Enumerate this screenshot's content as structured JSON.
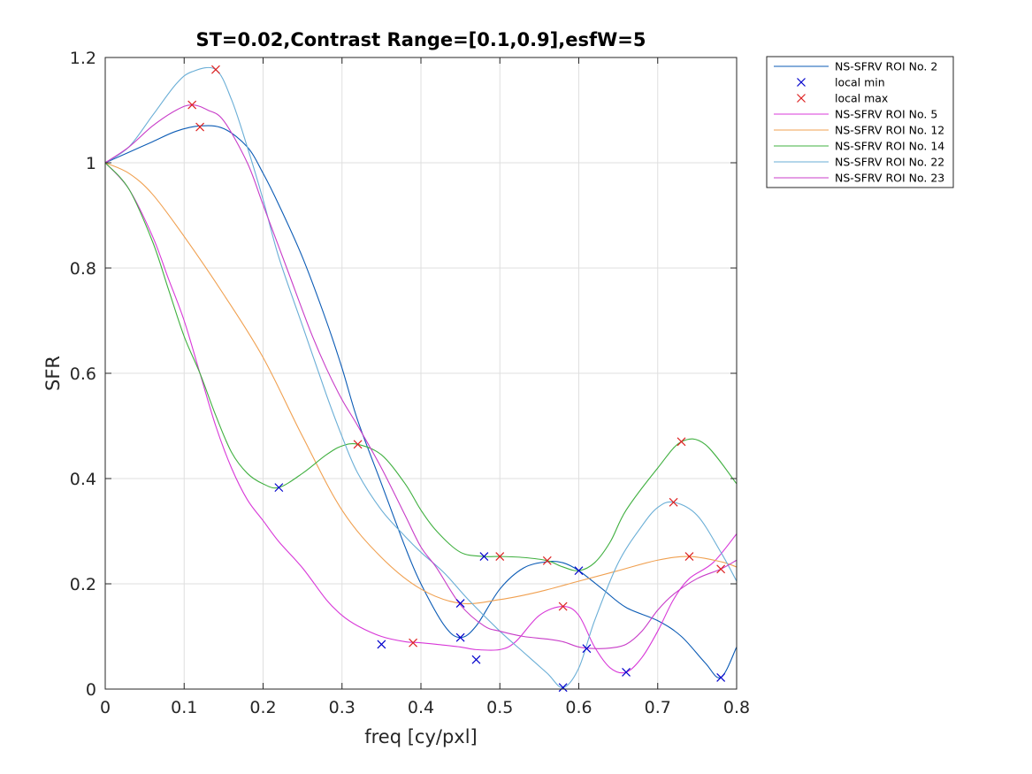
{
  "chart_data": {
    "type": "line",
    "title": "ST=0.02,Contrast Range=[0.1,0.9],esfW=5",
    "xlabel": "freq [cy/pxl]",
    "ylabel": "SFR",
    "xlim": [
      0,
      0.8
    ],
    "ylim": [
      0,
      1.2
    ],
    "xticks": [
      "0",
      "0.1",
      "0.2",
      "0.3",
      "0.4",
      "0.5",
      "0.6",
      "0.7",
      "0.8"
    ],
    "yticks": [
      "0",
      "0.2",
      "0.4",
      "0.6",
      "0.8",
      "1",
      "1.2"
    ],
    "grid": true,
    "legend_position": "outside-top-right",
    "series": [
      {
        "name": "NS-SFRV ROI No. 2",
        "color": "#0b5bb5",
        "x": [
          0,
          0.03,
          0.06,
          0.09,
          0.12,
          0.15,
          0.18,
          0.2,
          0.22,
          0.25,
          0.28,
          0.3,
          0.32,
          0.35,
          0.38,
          0.4,
          0.43,
          0.45,
          0.47,
          0.5,
          0.53,
          0.56,
          0.58,
          0.6,
          0.63,
          0.66,
          0.7,
          0.73,
          0.76,
          0.78,
          0.8
        ],
        "y": [
          1.0,
          1.02,
          1.04,
          1.06,
          1.07,
          1.065,
          1.03,
          0.98,
          0.92,
          0.82,
          0.7,
          0.61,
          0.51,
          0.39,
          0.27,
          0.2,
          0.12,
          0.098,
          0.12,
          0.19,
          0.23,
          0.242,
          0.24,
          0.225,
          0.19,
          0.155,
          0.13,
          0.1,
          0.05,
          0.022,
          0.08
        ]
      },
      {
        "name": "NS-SFRV ROI No. 5",
        "color": "#d838d8",
        "x": [
          0,
          0.03,
          0.06,
          0.08,
          0.1,
          0.12,
          0.14,
          0.16,
          0.18,
          0.2,
          0.22,
          0.25,
          0.28,
          0.3,
          0.32,
          0.35,
          0.38,
          0.4,
          0.42,
          0.45,
          0.47,
          0.5,
          0.52,
          0.55,
          0.58,
          0.6,
          0.62,
          0.64,
          0.66,
          0.68,
          0.7,
          0.72,
          0.74,
          0.77,
          0.8
        ],
        "y": [
          1.0,
          0.95,
          0.86,
          0.78,
          0.7,
          0.6,
          0.5,
          0.42,
          0.36,
          0.32,
          0.28,
          0.23,
          0.17,
          0.14,
          0.12,
          0.1,
          0.09,
          0.088,
          0.085,
          0.08,
          0.075,
          0.075,
          0.09,
          0.14,
          0.157,
          0.14,
          0.08,
          0.04,
          0.032,
          0.06,
          0.11,
          0.17,
          0.21,
          0.24,
          0.295
        ]
      },
      {
        "name": "NS-SFRV ROI No. 12",
        "color": "#f0a050",
        "x": [
          0,
          0.03,
          0.06,
          0.1,
          0.15,
          0.2,
          0.25,
          0.3,
          0.35,
          0.4,
          0.45,
          0.5,
          0.55,
          0.6,
          0.65,
          0.7,
          0.74,
          0.78,
          0.8
        ],
        "y": [
          1.0,
          0.98,
          0.94,
          0.86,
          0.75,
          0.63,
          0.48,
          0.34,
          0.25,
          0.19,
          0.163,
          0.17,
          0.185,
          0.205,
          0.225,
          0.245,
          0.252,
          0.242,
          0.232
        ]
      },
      {
        "name": "NS-SFRV ROI No. 14",
        "color": "#40b040",
        "x": [
          0,
          0.03,
          0.06,
          0.08,
          0.1,
          0.12,
          0.14,
          0.16,
          0.18,
          0.2,
          0.22,
          0.25,
          0.28,
          0.3,
          0.32,
          0.35,
          0.38,
          0.4,
          0.42,
          0.45,
          0.48,
          0.5,
          0.53,
          0.56,
          0.58,
          0.6,
          0.62,
          0.64,
          0.66,
          0.7,
          0.73,
          0.76,
          0.8
        ],
        "y": [
          1.0,
          0.95,
          0.85,
          0.76,
          0.67,
          0.6,
          0.52,
          0.45,
          0.41,
          0.39,
          0.383,
          0.41,
          0.445,
          0.462,
          0.465,
          0.445,
          0.39,
          0.34,
          0.3,
          0.26,
          0.252,
          0.252,
          0.25,
          0.244,
          0.232,
          0.225,
          0.24,
          0.28,
          0.34,
          0.42,
          0.47,
          0.465,
          0.39
        ]
      },
      {
        "name": "NS-SFRV ROI No. 22",
        "color": "#6aaed6",
        "x": [
          0,
          0.03,
          0.06,
          0.09,
          0.11,
          0.14,
          0.16,
          0.18,
          0.2,
          0.22,
          0.25,
          0.28,
          0.3,
          0.32,
          0.35,
          0.38,
          0.4,
          0.43,
          0.46,
          0.5,
          0.53,
          0.56,
          0.58,
          0.6,
          0.62,
          0.65,
          0.68,
          0.7,
          0.72,
          0.75,
          0.78,
          0.8
        ],
        "y": [
          1.0,
          1.03,
          1.09,
          1.15,
          1.173,
          1.177,
          1.12,
          1.03,
          0.93,
          0.82,
          0.69,
          0.56,
          0.48,
          0.41,
          0.34,
          0.29,
          0.26,
          0.22,
          0.17,
          0.11,
          0.07,
          0.03,
          0.003,
          0.04,
          0.13,
          0.24,
          0.31,
          0.345,
          0.355,
          0.33,
          0.26,
          0.205
        ]
      },
      {
        "name": "NS-SFRV ROI No. 23",
        "color": "#c83cc8",
        "x": [
          0,
          0.03,
          0.06,
          0.09,
          0.11,
          0.13,
          0.15,
          0.18,
          0.2,
          0.23,
          0.26,
          0.28,
          0.3,
          0.32,
          0.35,
          0.38,
          0.4,
          0.42,
          0.45,
          0.48,
          0.5,
          0.53,
          0.56,
          0.58,
          0.6,
          0.62,
          0.64,
          0.66,
          0.68,
          0.7,
          0.72,
          0.75,
          0.78,
          0.8
        ],
        "y": [
          1.0,
          1.03,
          1.07,
          1.1,
          1.11,
          1.1,
          1.08,
          1.0,
          0.92,
          0.8,
          0.68,
          0.61,
          0.55,
          0.5,
          0.42,
          0.33,
          0.27,
          0.23,
          0.16,
          0.12,
          0.11,
          0.1,
          0.095,
          0.09,
          0.08,
          0.077,
          0.078,
          0.085,
          0.11,
          0.15,
          0.18,
          0.21,
          0.228,
          0.245
        ]
      }
    ],
    "local_min": {
      "name": "local min",
      "color": "#0000cc",
      "points": [
        [
          0.22,
          0.383
        ],
        [
          0.35,
          0.085
        ],
        [
          0.45,
          0.163
        ],
        [
          0.45,
          0.098
        ],
        [
          0.47,
          0.056
        ],
        [
          0.48,
          0.252
        ],
        [
          0.58,
          0.003
        ],
        [
          0.6,
          0.225
        ],
        [
          0.61,
          0.077
        ],
        [
          0.66,
          0.032
        ],
        [
          0.78,
          0.022
        ]
      ]
    },
    "local_max": {
      "name": "local max",
      "color": "#dd2222",
      "points": [
        [
          0.11,
          1.11
        ],
        [
          0.12,
          1.068
        ],
        [
          0.14,
          1.177
        ],
        [
          0.32,
          0.465
        ],
        [
          0.39,
          0.088
        ],
        [
          0.5,
          0.252
        ],
        [
          0.56,
          0.244
        ],
        [
          0.58,
          0.157
        ],
        [
          0.72,
          0.355
        ],
        [
          0.73,
          0.47
        ],
        [
          0.74,
          0.252
        ],
        [
          0.78,
          0.228
        ]
      ]
    },
    "legend_entries": [
      {
        "label": "NS-SFRV ROI No. 2",
        "kind": "line",
        "color": "#0b5bb5"
      },
      {
        "label": "local min",
        "kind": "marker",
        "color": "#0000cc"
      },
      {
        "label": "local max",
        "kind": "marker",
        "color": "#dd2222"
      },
      {
        "label": "NS-SFRV ROI No. 5",
        "kind": "line",
        "color": "#d838d8"
      },
      {
        "label": "NS-SFRV ROI No. 12",
        "kind": "line",
        "color": "#f0a050"
      },
      {
        "label": "NS-SFRV ROI No. 14",
        "kind": "line",
        "color": "#40b040"
      },
      {
        "label": "NS-SFRV ROI No. 22",
        "kind": "line",
        "color": "#6aaed6"
      },
      {
        "label": "NS-SFRV ROI No. 23",
        "kind": "line",
        "color": "#c83cc8"
      }
    ]
  }
}
